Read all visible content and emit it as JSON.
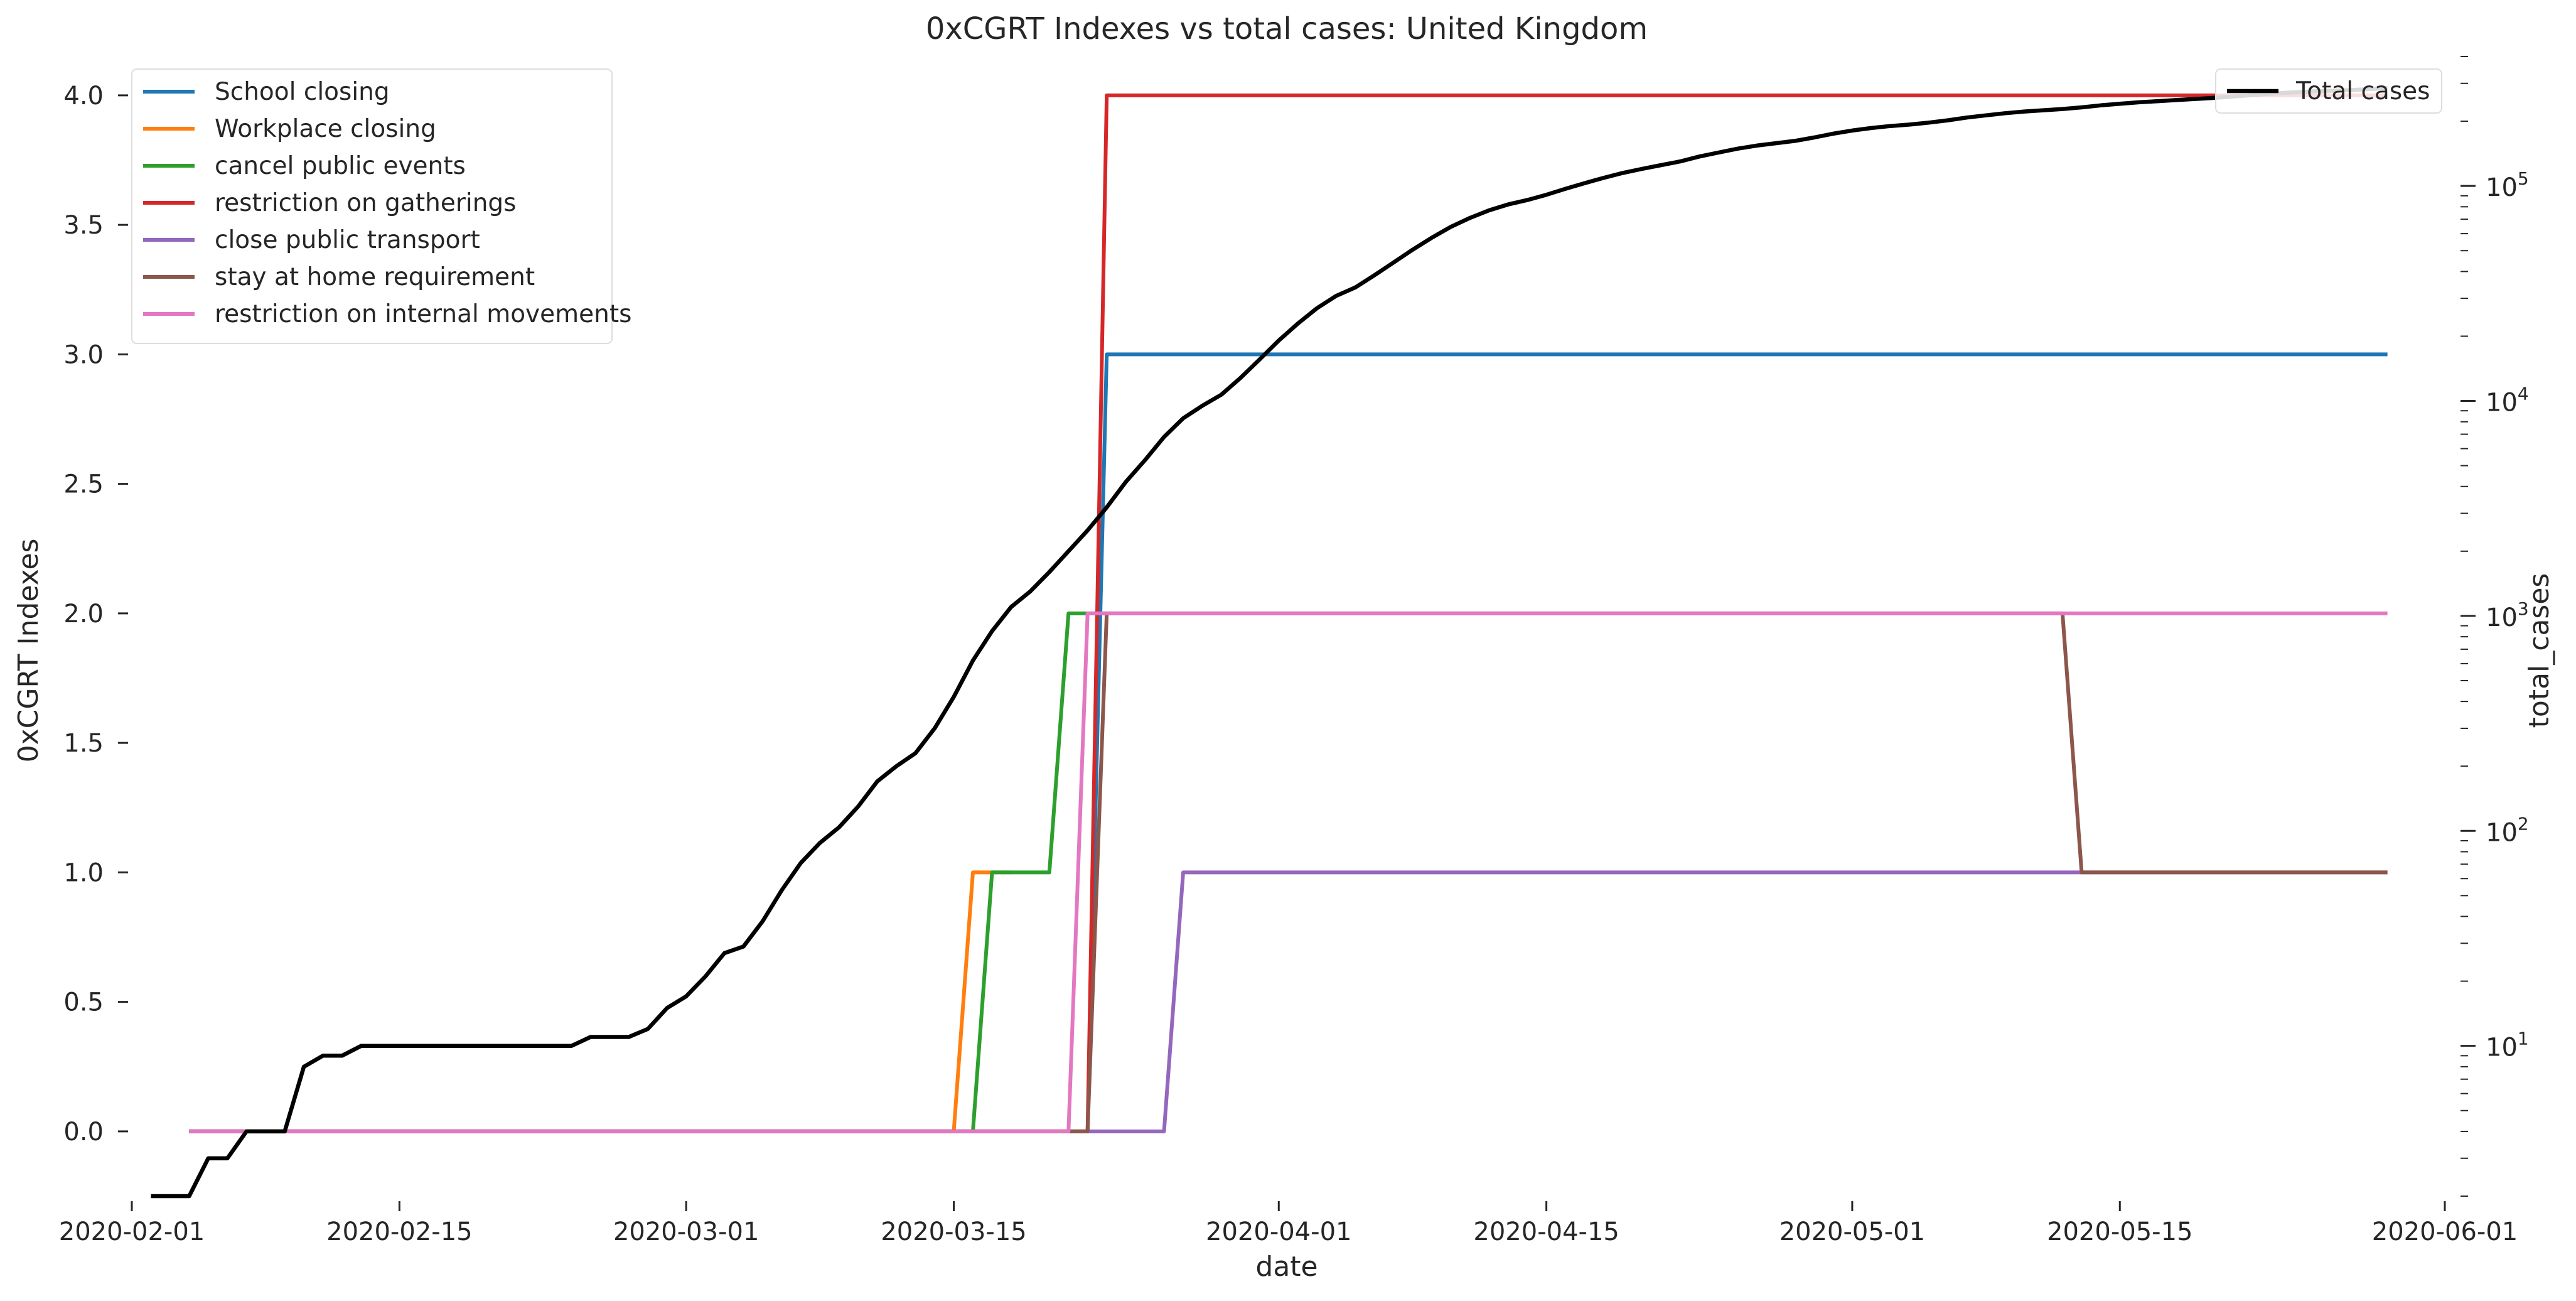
{
  "chart_data": {
    "type": "line",
    "title": "0xCGRT Indexes vs total cases:  United Kingdom",
    "xlabel": "date",
    "ylabel_left": "0xCGRT Indexes",
    "ylabel_right": "total_cases",
    "xlim": [
      "2020-02-01",
      "2020-06-01"
    ],
    "ylim_left": [
      -0.25,
      4.15
    ],
    "ylim_right": [
      2,
      400000
    ],
    "right_scale": "log",
    "grid": false,
    "x_ticks": [
      "2020-02-01",
      "2020-02-15",
      "2020-03-01",
      "2020-03-15",
      "2020-04-01",
      "2020-04-15",
      "2020-05-01",
      "2020-05-15",
      "2020-06-01"
    ],
    "y_ticks_left": [
      "0.0",
      "0.5",
      "1.0",
      "1.5",
      "2.0",
      "2.5",
      "3.0",
      "3.5",
      "4.0"
    ],
    "y_ticks_right": [
      {
        "value": 10,
        "base": "10",
        "exp": "1"
      },
      {
        "value": 100,
        "base": "10",
        "exp": "2"
      },
      {
        "value": 1000,
        "base": "10",
        "exp": "3"
      },
      {
        "value": 10000,
        "base": "10",
        "exp": "4"
      },
      {
        "value": 100000,
        "base": "10",
        "exp": "5"
      }
    ],
    "legend_left_position": "upper-left",
    "legend_right_position": "upper-right",
    "series": [
      {
        "name": "School closing",
        "color": "#1f77b4",
        "points": [
          [
            "2020-02-04",
            0
          ],
          [
            "2020-03-22",
            0
          ],
          [
            "2020-03-23",
            3
          ],
          [
            "2020-05-29",
            3
          ]
        ]
      },
      {
        "name": "Workplace closing",
        "color": "#ff7f0e",
        "points": [
          [
            "2020-02-04",
            0
          ],
          [
            "2020-03-15",
            0
          ],
          [
            "2020-03-16",
            1
          ],
          [
            "2020-03-17",
            1
          ],
          [
            "2020-03-18",
            1
          ]
        ]
      },
      {
        "name": "cancel public events",
        "color": "#2ca02c",
        "points": [
          [
            "2020-02-04",
            0
          ],
          [
            "2020-03-16",
            0
          ],
          [
            "2020-03-17",
            1
          ],
          [
            "2020-03-20",
            1
          ],
          [
            "2020-03-21",
            2
          ],
          [
            "2020-03-23",
            2
          ]
        ]
      },
      {
        "name": "restriction on gatherings",
        "color": "#d62728",
        "points": [
          [
            "2020-02-04",
            0
          ],
          [
            "2020-03-22",
            0
          ],
          [
            "2020-03-23",
            4
          ],
          [
            "2020-05-29",
            4
          ]
        ]
      },
      {
        "name": "close public transport",
        "color": "#9467bd",
        "points": [
          [
            "2020-02-04",
            0
          ],
          [
            "2020-03-26",
            0
          ],
          [
            "2020-03-27",
            1
          ],
          [
            "2020-05-29",
            1
          ]
        ]
      },
      {
        "name": "stay at home requirement",
        "color": "#8c564b",
        "points": [
          [
            "2020-02-04",
            0
          ],
          [
            "2020-03-22",
            0
          ],
          [
            "2020-03-23",
            2
          ],
          [
            "2020-05-12",
            2
          ],
          [
            "2020-05-13",
            1
          ],
          [
            "2020-05-29",
            1
          ]
        ]
      },
      {
        "name": "restriction on internal movements",
        "color": "#e377c2",
        "points": [
          [
            "2020-02-04",
            0
          ],
          [
            "2020-03-21",
            0
          ],
          [
            "2020-03-22",
            2
          ],
          [
            "2020-05-29",
            2
          ]
        ]
      }
    ],
    "secondary_series": [
      {
        "name": "Total cases",
        "color": "#000000",
        "axis": "right",
        "points": [
          [
            "2020-02-02",
            2
          ],
          [
            "2020-02-04",
            2
          ],
          [
            "2020-02-05",
            3
          ],
          [
            "2020-02-06",
            3
          ],
          [
            "2020-02-07",
            4
          ],
          [
            "2020-02-09",
            4
          ],
          [
            "2020-02-10",
            8
          ],
          [
            "2020-02-11",
            9
          ],
          [
            "2020-02-12",
            9
          ],
          [
            "2020-02-13",
            10
          ],
          [
            "2020-02-24",
            10
          ],
          [
            "2020-02-25",
            11
          ],
          [
            "2020-02-27",
            11
          ],
          [
            "2020-02-28",
            12
          ],
          [
            "2020-02-29",
            15
          ],
          [
            "2020-03-01",
            17
          ],
          [
            "2020-03-02",
            21
          ],
          [
            "2020-03-03",
            27
          ],
          [
            "2020-03-04",
            29
          ],
          [
            "2020-03-05",
            38
          ],
          [
            "2020-03-06",
            53
          ],
          [
            "2020-03-07",
            71
          ],
          [
            "2020-03-08",
            88
          ],
          [
            "2020-03-09",
            104
          ],
          [
            "2020-03-10",
            130
          ],
          [
            "2020-03-11",
            170
          ],
          [
            "2020-03-12",
            200
          ],
          [
            "2020-03-13",
            230
          ],
          [
            "2020-03-14",
            300
          ],
          [
            "2020-03-15",
            420
          ],
          [
            "2020-03-16",
            620
          ],
          [
            "2020-03-17",
            850
          ],
          [
            "2020-03-18",
            1100
          ],
          [
            "2020-03-19",
            1300
          ],
          [
            "2020-03-20",
            1600
          ],
          [
            "2020-03-21",
            2000
          ],
          [
            "2020-03-22",
            2500
          ],
          [
            "2020-03-23",
            3200
          ],
          [
            "2020-03-24",
            4200
          ],
          [
            "2020-03-25",
            5300
          ],
          [
            "2020-03-26",
            6800
          ],
          [
            "2020-03-27",
            8300
          ],
          [
            "2020-03-28",
            9500
          ],
          [
            "2020-03-29",
            10700
          ],
          [
            "2020-03-30",
            12800
          ],
          [
            "2020-03-31",
            15600
          ],
          [
            "2020-04-01",
            19100
          ],
          [
            "2020-04-02",
            22900
          ],
          [
            "2020-04-03",
            27000
          ],
          [
            "2020-04-04",
            30800
          ],
          [
            "2020-04-05",
            33700
          ],
          [
            "2020-04-06",
            38400
          ],
          [
            "2020-04-07",
            44000
          ],
          [
            "2020-04-08",
            50500
          ],
          [
            "2020-04-09",
            57400
          ],
          [
            "2020-04-10",
            64500
          ],
          [
            "2020-04-11",
            71000
          ],
          [
            "2020-04-12",
            77000
          ],
          [
            "2020-04-13",
            82000
          ],
          [
            "2020-04-14",
            86000
          ],
          [
            "2020-04-15",
            91000
          ],
          [
            "2020-04-16",
            97000
          ],
          [
            "2020-04-17",
            103000
          ],
          [
            "2020-04-18",
            109000
          ],
          [
            "2020-04-19",
            115000
          ],
          [
            "2020-04-20",
            120000
          ],
          [
            "2020-04-21",
            125000
          ],
          [
            "2020-04-22",
            130000
          ],
          [
            "2020-04-23",
            137000
          ],
          [
            "2020-04-24",
            143000
          ],
          [
            "2020-04-25",
            149000
          ],
          [
            "2020-04-26",
            154000
          ],
          [
            "2020-04-27",
            158000
          ],
          [
            "2020-04-28",
            162000
          ],
          [
            "2020-04-29",
            168000
          ],
          [
            "2020-04-30",
            175000
          ],
          [
            "2020-05-01",
            181000
          ],
          [
            "2020-05-02",
            186000
          ],
          [
            "2020-05-03",
            190000
          ],
          [
            "2020-05-04",
            193000
          ],
          [
            "2020-05-05",
            197000
          ],
          [
            "2020-05-06",
            202000
          ],
          [
            "2020-05-07",
            208000
          ],
          [
            "2020-05-08",
            213000
          ],
          [
            "2020-05-09",
            218000
          ],
          [
            "2020-05-10",
            222000
          ],
          [
            "2020-05-11",
            225000
          ],
          [
            "2020-05-12",
            228000
          ],
          [
            "2020-05-13",
            232000
          ],
          [
            "2020-05-14",
            237000
          ],
          [
            "2020-05-15",
            241000
          ],
          [
            "2020-05-16",
            245000
          ],
          [
            "2020-05-17",
            248000
          ],
          [
            "2020-05-18",
            251000
          ],
          [
            "2020-05-19",
            254000
          ],
          [
            "2020-05-20",
            257000
          ],
          [
            "2020-05-21",
            261000
          ],
          [
            "2020-05-22",
            265000
          ],
          [
            "2020-05-23",
            269000
          ],
          [
            "2020-05-24",
            272000
          ],
          [
            "2020-05-25",
            275000
          ],
          [
            "2020-05-26",
            277000
          ],
          [
            "2020-05-27",
            279000
          ],
          [
            "2020-05-28",
            282000
          ],
          [
            "2020-05-29",
            285000
          ]
        ]
      }
    ]
  }
}
